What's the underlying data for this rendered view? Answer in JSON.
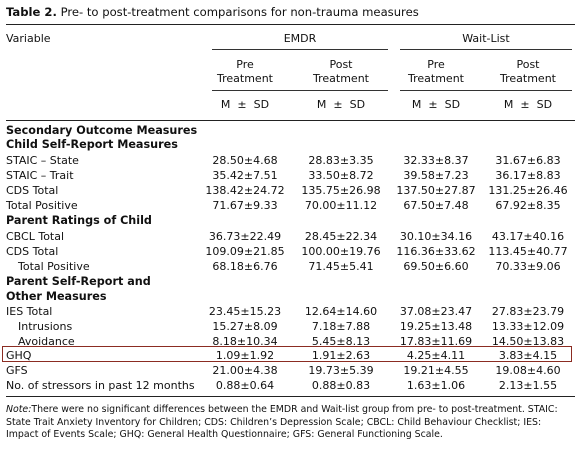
{
  "caption": {
    "label": "Table 2.",
    "text": "Pre- to post-treatment comparisons for non-trauma measures"
  },
  "header": {
    "variable": "Variable",
    "groups": [
      "EMDR",
      "Wait-List"
    ],
    "subcols": [
      [
        "Pre",
        "Treatment"
      ],
      [
        "Post",
        "Treatment"
      ],
      [
        "Pre",
        "Treatment"
      ],
      [
        "Post",
        "Treatment"
      ]
    ],
    "stat": "M  ±  SD"
  },
  "rows": [
    {
      "label": "Secondary Outcome Measures",
      "section": true,
      "values": []
    },
    {
      "label": "Child Self-Report Measures",
      "section": true,
      "values": []
    },
    {
      "label": "STAIC – State",
      "values": [
        "28.50±4.68",
        "28.83±3.35",
        "32.33±8.37",
        "31.67±6.83"
      ]
    },
    {
      "label": "STAIC – Trait",
      "values": [
        "35.42±7.51",
        "33.50±8.72",
        "39.58±7.23",
        "36.17±8.83"
      ]
    },
    {
      "label": "CDS Total",
      "values": [
        "138.42±24.72",
        "135.75±26.98",
        "137.50±27.87",
        "131.25±26.46"
      ]
    },
    {
      "label": "Total Positive",
      "values": [
        "71.67±9.33",
        "70.00±11.12",
        "67.50±7.48",
        "67.92±8.35"
      ]
    },
    {
      "label": "Parent Ratings of Child",
      "section": true,
      "values": []
    },
    {
      "label": "CBCL Total",
      "values": [
        "36.73±22.49",
        "28.45±22.34",
        "30.10±34.16",
        "43.17±40.16"
      ]
    },
    {
      "label": "CDS Total",
      "values": [
        "109.09±21.85",
        "100.00±19.76",
        "116.36±33.62",
        "113.45±40.77"
      ]
    },
    {
      "label": "Total Positive",
      "indent": true,
      "values": [
        "68.18±6.76",
        "71.45±5.41",
        "69.50±6.60",
        "70.33±9.06"
      ]
    },
    {
      "label": "Parent Self-Report and",
      "section": true,
      "values": []
    },
    {
      "label": "Other Measures",
      "section": true,
      "values": []
    },
    {
      "label": "IES Total",
      "values": [
        "23.45±15.23",
        "12.64±14.60",
        "37.08±23.47",
        "27.83±23.79"
      ]
    },
    {
      "label": "Intrusions",
      "indent": true,
      "values": [
        "15.27±8.09",
        "7.18±7.88",
        "19.25±13.48",
        "13.33±12.09"
      ]
    },
    {
      "label": "Avoidance",
      "indent": true,
      "values": [
        "8.18±10.34",
        "5.45±8.13",
        "17.83±11.69",
        "14.50±13.83"
      ]
    },
    {
      "label": "GHQ",
      "values": [
        "1.09±1.92",
        "1.91±2.63",
        "4.25±4.11",
        "3.83±4.15"
      ]
    },
    {
      "label": "GFS",
      "values": [
        "21.00±4.38",
        "19.73±5.39",
        "19.21±4.55",
        "19.08±4.60"
      ]
    },
    {
      "label": "No. of stressors in past 12 months",
      "values": [
        "0.88±0.64",
        "0.88±0.83",
        "1.63±1.06",
        "2.13±1.55"
      ]
    }
  ],
  "note": {
    "label": "Note:",
    "text": "There were no significant differences between the EMDR and Wait-list group from pre- to post-treatment. STAIC: State Trait Anxiety Inventory for Children; CDS: Children’s Depression Scale; CBCL: Child Behaviour Checklist; IES: Impact of Events Scale; GHQ: General Health Questionnaire; GFS: General Functioning Scale."
  },
  "highlight_row": "GHQ",
  "colors": {
    "highlight_border": "#8b2c22",
    "rule": "#222222"
  }
}
